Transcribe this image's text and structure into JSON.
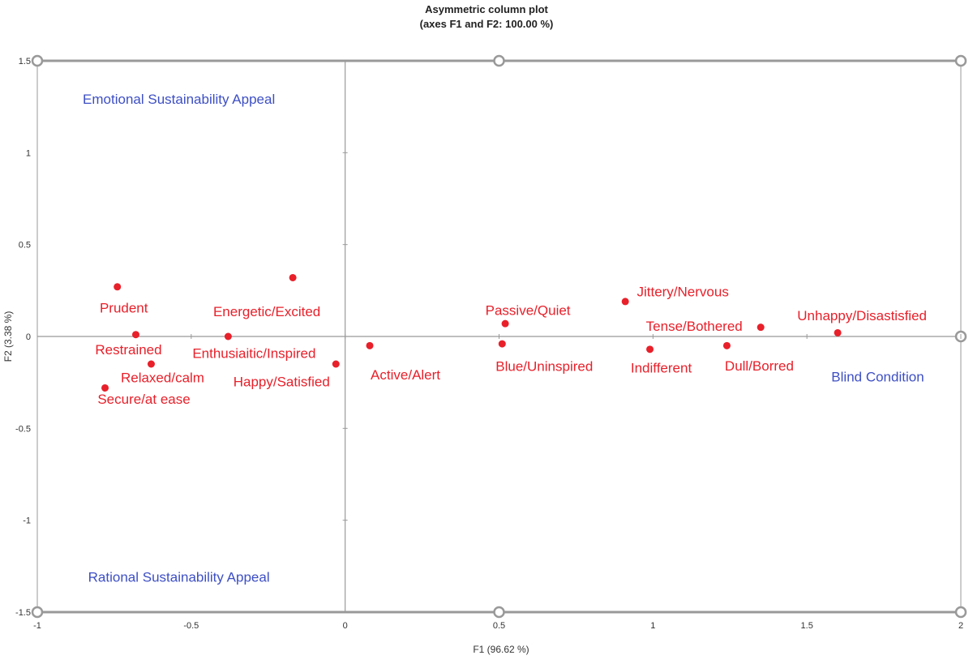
{
  "chart_data": {
    "type": "scatter",
    "title": "Asymmetric column plot",
    "subtitle": "(axes F1 and F2: 100.00 %)",
    "xlabel": "F1 (96.62 %)",
    "ylabel": "F2 (3.38 %)",
    "xlim": [
      -1,
      2
    ],
    "ylim": [
      -1.5,
      1.5
    ],
    "x_ticks": [
      "-1",
      "-0.5",
      "0",
      "0.5",
      "1",
      "1.5",
      "2"
    ],
    "y_ticks": [
      "1.5",
      "1",
      "0.5",
      "0",
      "-0.5",
      "-1",
      "-1.5"
    ],
    "grid": false,
    "legend": "none",
    "colors": {
      "rows": "#e8202a",
      "columns": "#3d4fc4",
      "axes": "#999999"
    },
    "series": [
      {
        "points": [
          {
            "label": "Prudent",
            "x": -0.74,
            "y": 0.27
          },
          {
            "label": "Energetic/Excited",
            "x": -0.17,
            "y": 0.32
          },
          {
            "label": "Restrained",
            "x": -0.68,
            "y": 0.01
          },
          {
            "label": "Enthusiaitic/Inspired",
            "x": -0.38,
            "y": 0.0
          },
          {
            "label": "Relaxed/calm",
            "x": -0.63,
            "y": -0.15
          },
          {
            "label": "Secure/at ease",
            "x": -0.78,
            "y": -0.28
          },
          {
            "label": "Happy/Satisfied",
            "x": -0.03,
            "y": -0.15
          },
          {
            "label": "Active/Alert",
            "x": 0.08,
            "y": -0.05
          },
          {
            "label": "Passive/Quiet",
            "x": 0.52,
            "y": 0.07
          },
          {
            "label": "Blue/Uninspired",
            "x": 0.51,
            "y": -0.04
          },
          {
            "label": "Jittery/Nervous",
            "x": 0.91,
            "y": 0.19
          },
          {
            "label": "Indifferent",
            "x": 0.99,
            "y": -0.07
          },
          {
            "label": "Tense/Bothered",
            "x": 1.35,
            "y": 0.05
          },
          {
            "label": "Dull/Borred",
            "x": 1.24,
            "y": -0.05
          },
          {
            "label": "Unhappy/Disastisfied",
            "x": 1.6,
            "y": 0.02
          }
        ]
      },
      {
        "points": [
          {
            "label": "Emotional Sustainability Appeal",
            "x": -0.54,
            "y": 1.29
          },
          {
            "label": "Rational Sustainability Appeal",
            "x": -0.54,
            "y": -1.31
          },
          {
            "label": "Blind Condition",
            "x": 1.73,
            "y": -0.22
          }
        ]
      }
    ]
  }
}
